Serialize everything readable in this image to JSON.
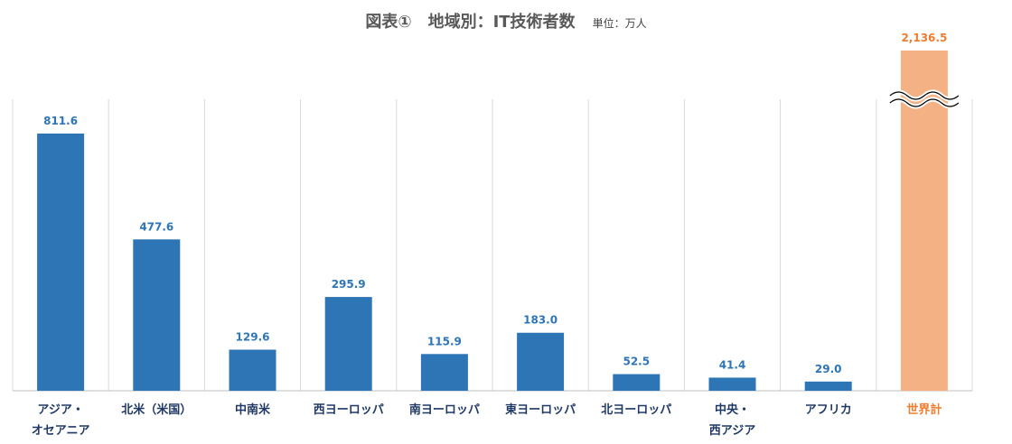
{
  "title": "図表①　地域別：IT技術者数",
  "unit": "単位：万人",
  "colors": {
    "bar": "#2E75B6",
    "total_bar": "#F4B183",
    "total_text": "#ED7D31",
    "label": "#2E75B6",
    "category": "#1F3864",
    "grid": "#D9D9D9"
  },
  "chart_data": {
    "type": "bar",
    "categories": [
      [
        "アジア・",
        "オセアニア"
      ],
      [
        "北米（米国）"
      ],
      [
        "中南米"
      ],
      [
        "西ヨーロッパ"
      ],
      [
        "南ヨーロッパ"
      ],
      [
        "東ヨーロッパ"
      ],
      [
        "北ヨーロッパ"
      ],
      [
        "中央・",
        "西アジア"
      ],
      [
        "アフリカ"
      ],
      [
        "世界計"
      ]
    ],
    "values": [
      811.6,
      477.6,
      129.6,
      295.9,
      115.9,
      183.0,
      52.5,
      41.4,
      29.0,
      2136.5
    ],
    "value_labels": [
      "811.6",
      "477.6",
      "129.6",
      "295.9",
      "115.9",
      "183.0",
      "52.5",
      "41.4",
      "29.0",
      "2,136.5"
    ],
    "axis_break_on_last": true,
    "ylim": [
      0,
      900
    ]
  }
}
